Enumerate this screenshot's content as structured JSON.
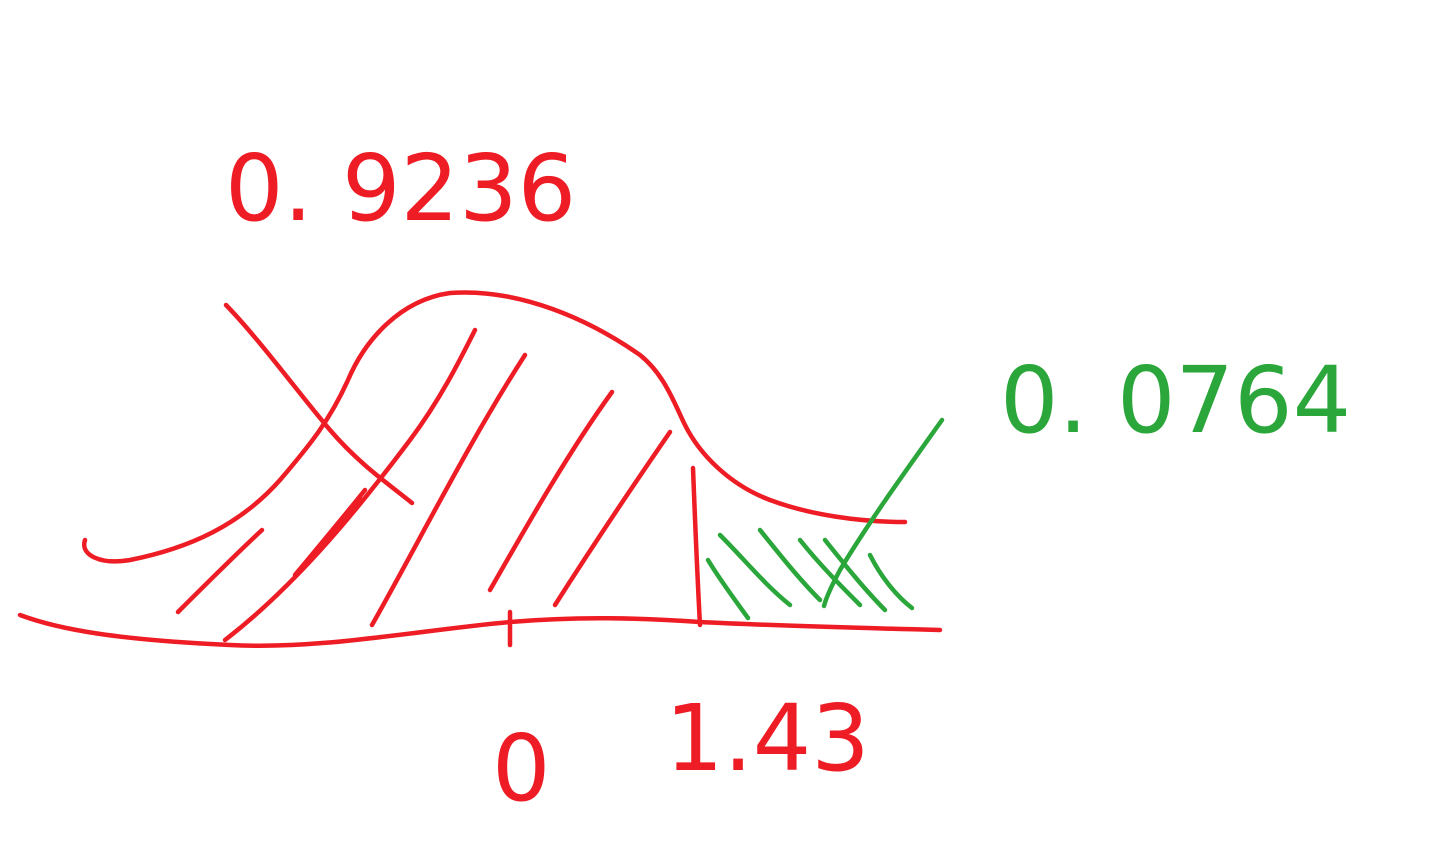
{
  "colors": {
    "red_ink": "#ee1c24",
    "green_ink": "#2aa63a",
    "background": "#ffffff"
  },
  "labels": {
    "left_area": "0. 9236",
    "right_area": "0. 0764",
    "tick_zero": "0",
    "tick_z": "1.43"
  }
}
